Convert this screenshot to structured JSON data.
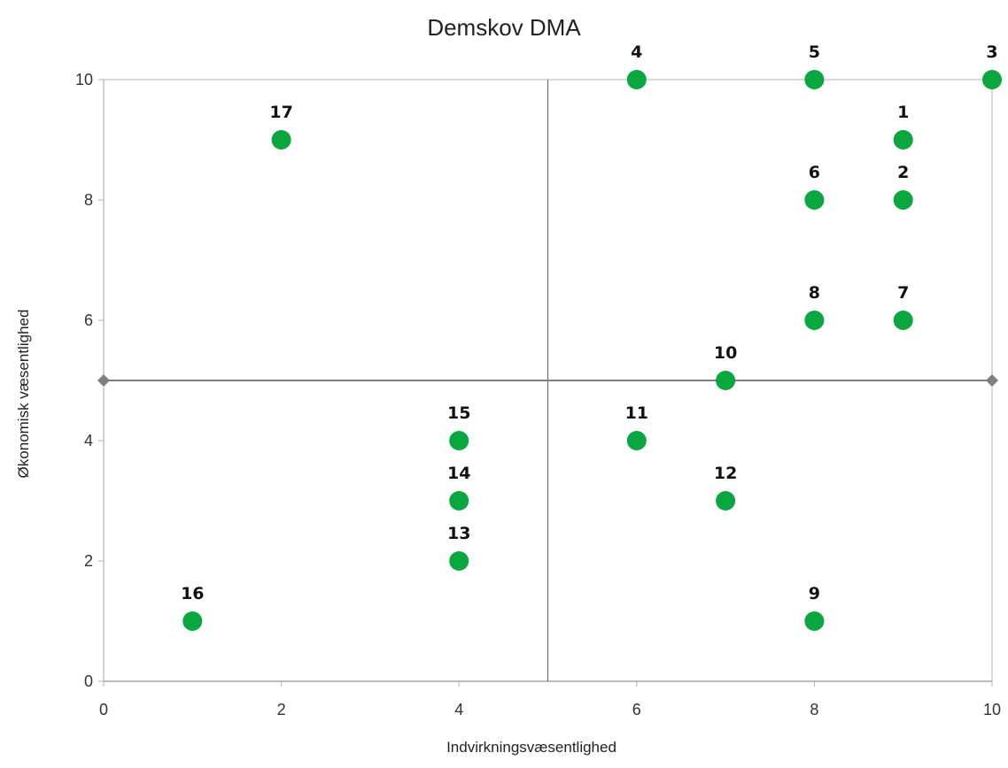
{
  "chart_data": {
    "type": "scatter",
    "title": "Demskov DMA",
    "xlabel": "Indvirkningsvæsentlighed",
    "ylabel": "Økonomisk væsentlighed",
    "xlim": [
      0,
      10
    ],
    "ylim": [
      0,
      10
    ],
    "xticks": [
      "0",
      "2",
      "4",
      "6",
      "8",
      "10"
    ],
    "yticks": [
      "0",
      "2",
      "4",
      "6",
      "8",
      "10"
    ],
    "grid": false,
    "threshold_lines": {
      "x": 5,
      "y": 5
    },
    "point_color": "#0aa63f",
    "line_color": "#7f7f7f",
    "points": [
      {
        "label": "1",
        "x": 9,
        "y": 9
      },
      {
        "label": "2",
        "x": 9,
        "y": 8
      },
      {
        "label": "3",
        "x": 10,
        "y": 10
      },
      {
        "label": "4",
        "x": 6,
        "y": 10
      },
      {
        "label": "5",
        "x": 8,
        "y": 10
      },
      {
        "label": "6",
        "x": 8,
        "y": 8
      },
      {
        "label": "7",
        "x": 9,
        "y": 6
      },
      {
        "label": "8",
        "x": 8,
        "y": 6
      },
      {
        "label": "9",
        "x": 8,
        "y": 1
      },
      {
        "label": "10",
        "x": 7,
        "y": 5
      },
      {
        "label": "11",
        "x": 6,
        "y": 4
      },
      {
        "label": "12",
        "x": 7,
        "y": 3
      },
      {
        "label": "13",
        "x": 4,
        "y": 2
      },
      {
        "label": "14",
        "x": 4,
        "y": 3
      },
      {
        "label": "15",
        "x": 4,
        "y": 4
      },
      {
        "label": "16",
        "x": 1,
        "y": 1
      },
      {
        "label": "17",
        "x": 2,
        "y": 9
      }
    ]
  }
}
